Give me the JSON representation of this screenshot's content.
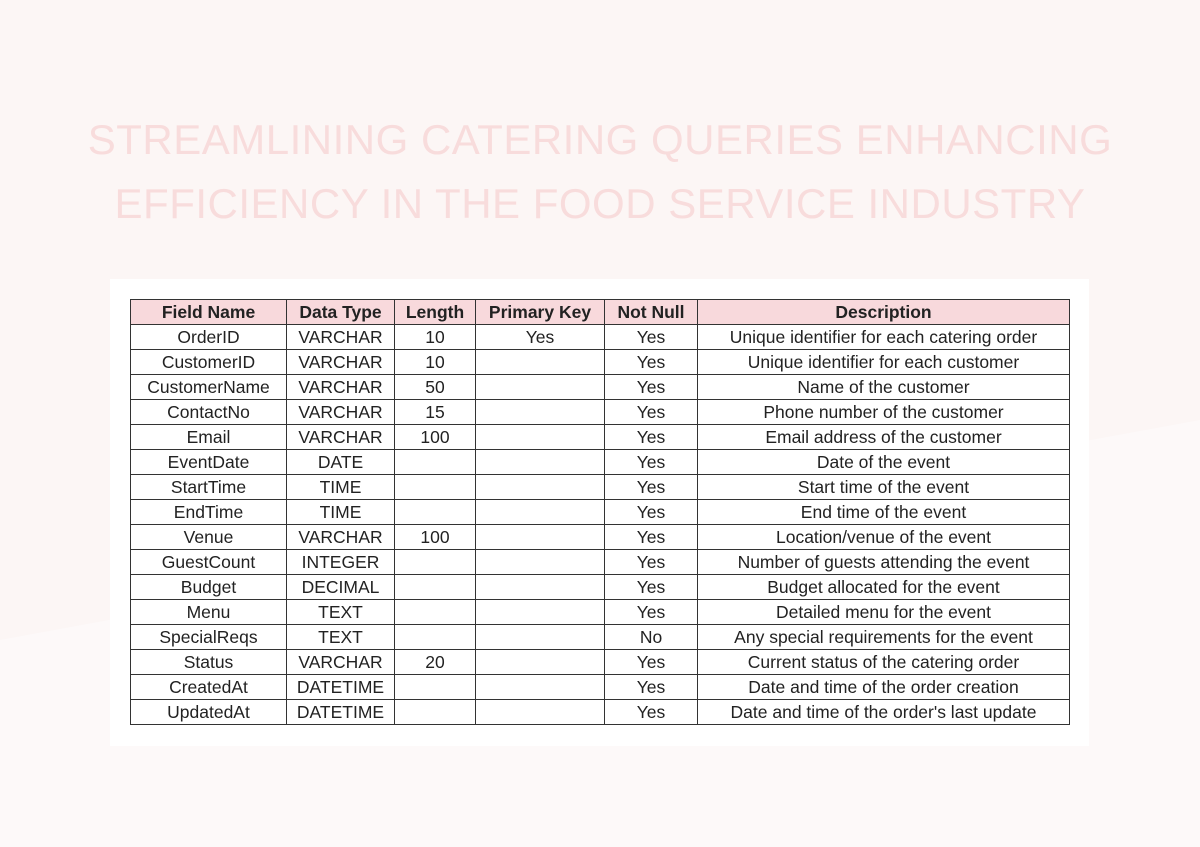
{
  "title_lines": [
    "STREAMLINING CATERING QUERIES ENHANCING",
    "EFFICIENCY IN THE FOOD SERVICE INDUSTRY"
  ],
  "colors": {
    "header_bg": "#f8d9dc",
    "title": "#f8dcdc",
    "background": "#fcf6f5"
  },
  "table": {
    "headers": [
      "Field Name",
      "Data Type",
      "Length",
      "Primary Key",
      "Not Null",
      "Description"
    ],
    "rows": [
      [
        "OrderID",
        "VARCHAR",
        "10",
        "Yes",
        "Yes",
        "Unique identifier for each catering order"
      ],
      [
        "CustomerID",
        "VARCHAR",
        "10",
        "",
        "Yes",
        "Unique identifier for each customer"
      ],
      [
        "CustomerName",
        "VARCHAR",
        "50",
        "",
        "Yes",
        "Name of the customer"
      ],
      [
        "ContactNo",
        "VARCHAR",
        "15",
        "",
        "Yes",
        "Phone number of the customer"
      ],
      [
        "Email",
        "VARCHAR",
        "100",
        "",
        "Yes",
        "Email address of the customer"
      ],
      [
        "EventDate",
        "DATE",
        "",
        "",
        "Yes",
        "Date of the event"
      ],
      [
        "StartTime",
        "TIME",
        "",
        "",
        "Yes",
        "Start time of the event"
      ],
      [
        "EndTime",
        "TIME",
        "",
        "",
        "Yes",
        "End time of the event"
      ],
      [
        "Venue",
        "VARCHAR",
        "100",
        "",
        "Yes",
        "Location/venue of the event"
      ],
      [
        "GuestCount",
        "INTEGER",
        "",
        "",
        "Yes",
        "Number of guests attending the event"
      ],
      [
        "Budget",
        "DECIMAL",
        "",
        "",
        "Yes",
        "Budget allocated for the event"
      ],
      [
        "Menu",
        "TEXT",
        "",
        "",
        "Yes",
        "Detailed menu for the event"
      ],
      [
        "SpecialReqs",
        "TEXT",
        "",
        "",
        "No",
        "Any special requirements for the event"
      ],
      [
        "Status",
        "VARCHAR",
        "20",
        "",
        "Yes",
        "Current status of the catering order"
      ],
      [
        "CreatedAt",
        "DATETIME",
        "",
        "",
        "Yes",
        "Date and time of the order creation"
      ],
      [
        "UpdatedAt",
        "DATETIME",
        "",
        "",
        "Yes",
        "Date and time of the order's last update"
      ]
    ]
  }
}
